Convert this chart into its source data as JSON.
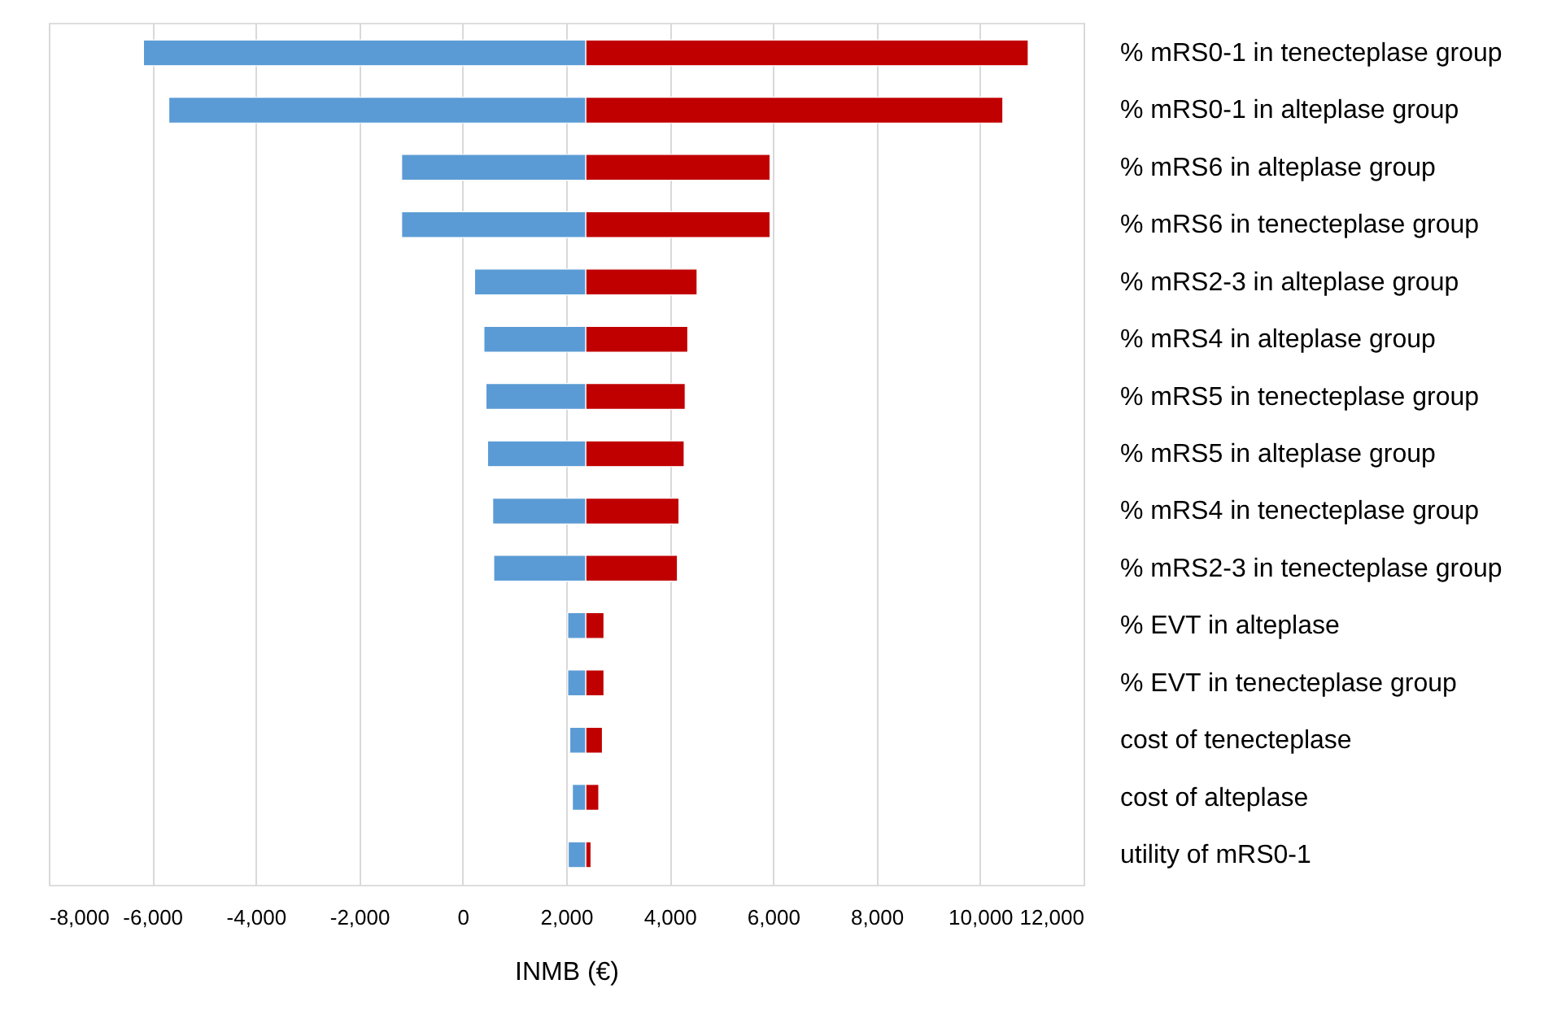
{
  "chart_data": {
    "type": "bar",
    "orientation": "horizontal",
    "xlabel": "INMB (€)",
    "categories": [
      "% mRS0-1 in tenecteplase group",
      "% mRS0-1 in alteplase group",
      "% mRS6 in alteplase group",
      "% mRS6 in tenecteplase group",
      "% mRS2-3 in alteplase group",
      "% mRS4 in alteplase group",
      "% mRS5 in tenecteplase group",
      "% mRS5 in alteplase group",
      "% mRS4 in tenecteplase group",
      "% mRS2-3 in tenecteplase group",
      "% EVT in alteplase",
      "% EVT in tenecteplase group",
      "cost of tenecteplase",
      "cost of alteplase",
      "utility of mRS0-1"
    ],
    "series": [
      {
        "color": "#5b9bd5",
        "base": [
          -6170,
          -5680,
          -1180,
          -1180,
          230,
          410,
          450,
          480,
          580,
          600,
          2030,
          2030,
          2070,
          2120,
          2040
        ],
        "values": [
          8550,
          8060,
          3560,
          3560,
          2150,
          1970,
          1930,
          1900,
          1800,
          1780,
          350,
          350,
          310,
          260,
          340
        ]
      },
      {
        "color": "#c00000",
        "base": [
          2380,
          2380,
          2380,
          2380,
          2380,
          2380,
          2380,
          2380,
          2380,
          2380,
          2380,
          2380,
          2380,
          2380,
          2380
        ],
        "values": [
          8550,
          8060,
          3560,
          3560,
          2150,
          1970,
          1920,
          1900,
          1800,
          1770,
          350,
          350,
          320,
          250,
          100
        ]
      }
    ],
    "xlim": [
      -8000,
      12000
    ],
    "xticks": [
      {
        "value": -8000,
        "label": "-8,000"
      },
      {
        "value": -6000,
        "label": "-6,000"
      },
      {
        "value": -4000,
        "label": "-4,000"
      },
      {
        "value": -2000,
        "label": "-2,000"
      },
      0,
      {
        "value": 2000,
        "label": "2,000"
      },
      {
        "value": 4000,
        "label": "4,000"
      },
      {
        "value": 6000,
        "label": "6,000"
      },
      {
        "value": 8000,
        "label": "8,000"
      },
      {
        "value": 10000,
        "label": "10,000"
      },
      {
        "value": 12000,
        "label": "12,000"
      }
    ],
    "grid": "x",
    "legend": false
  }
}
